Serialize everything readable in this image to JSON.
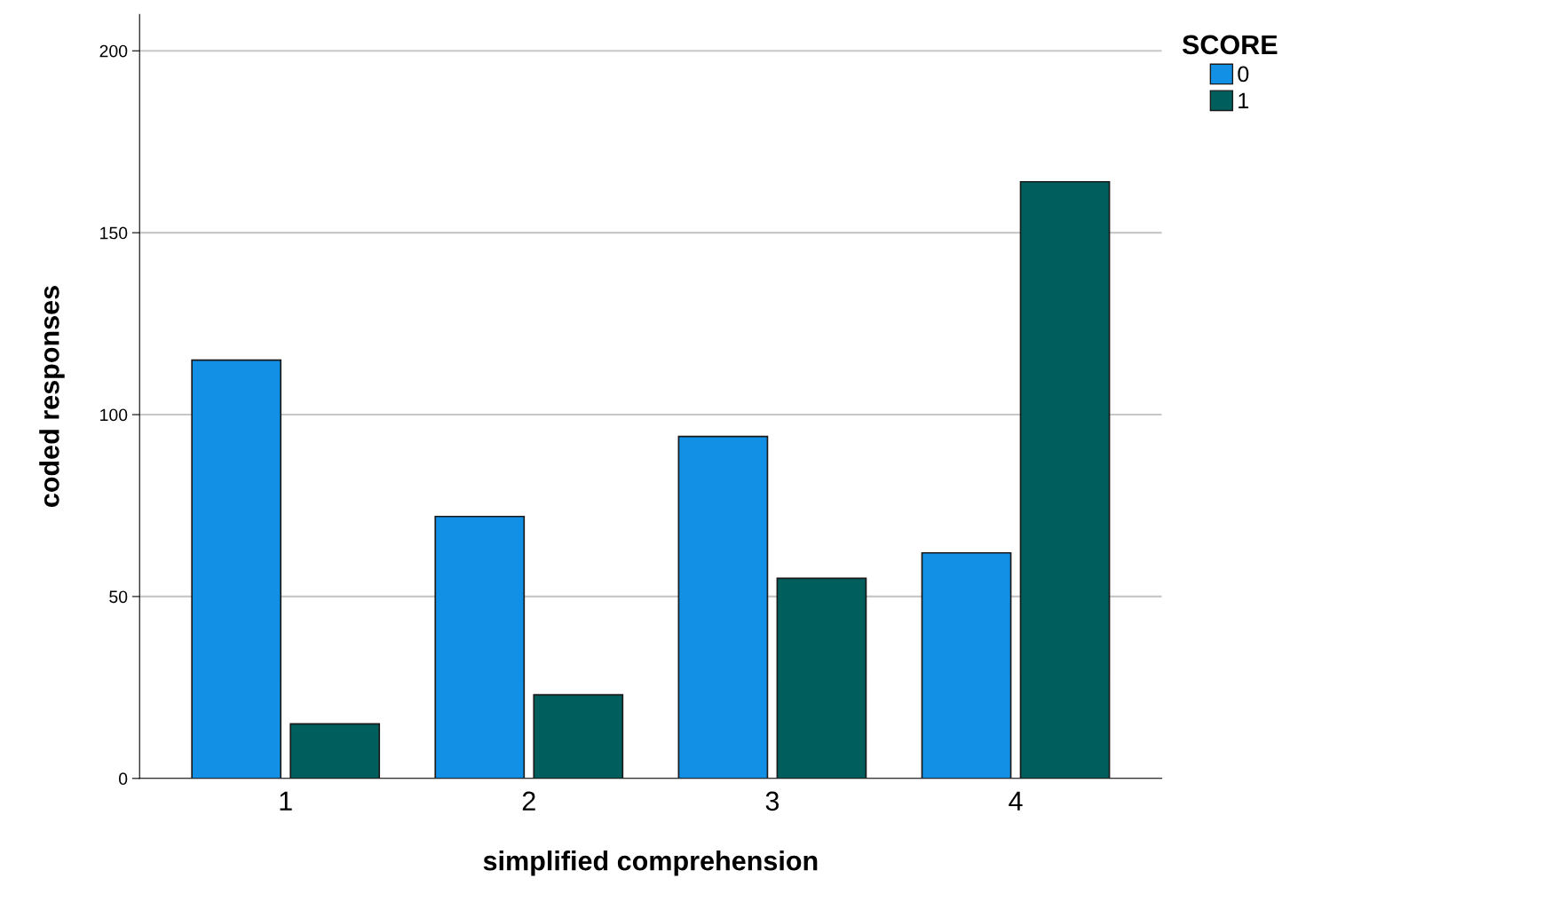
{
  "chart_data": {
    "type": "bar",
    "xlabel": "simplified comprehension",
    "ylabel": "coded responses",
    "legend_title": "SCORE",
    "categories": [
      "1",
      "2",
      "3",
      "4"
    ],
    "series": [
      {
        "name": "0",
        "color": "#1290e6",
        "values": [
          115,
          72,
          94,
          62
        ]
      },
      {
        "name": "1",
        "color": "#005e5c",
        "values": [
          15,
          23,
          55,
          164
        ]
      }
    ],
    "ylim": [
      0,
      210
    ],
    "yticks": [
      0,
      50,
      100,
      150,
      200
    ],
    "grid": "y",
    "legend": "top right"
  }
}
